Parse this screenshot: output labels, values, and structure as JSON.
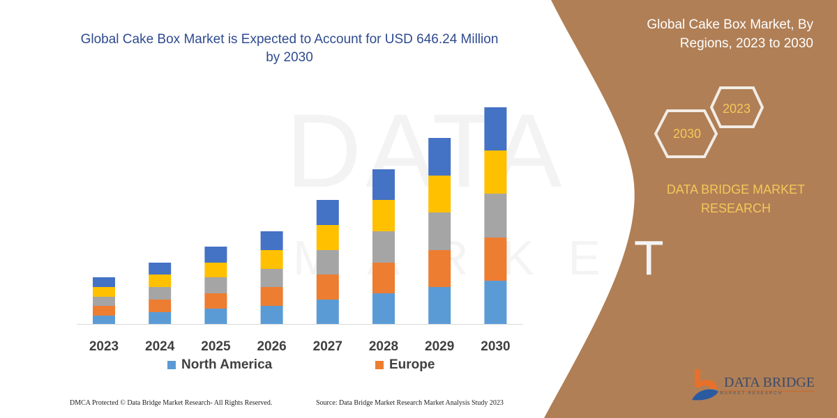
{
  "colors": {
    "panel": "#B07F56",
    "title": "#2E4B8F",
    "accent": "#F3C85A"
  },
  "footer": {
    "rights": "DMCA Protected © Data Bridge Market Research-  All Rights Reserved.",
    "source": "Source: Data Bridge Market Research  Market Analysis Study 2023"
  },
  "side_panel": {
    "title": "Global Cake Box Market, By Regions, 2023 to 2030",
    "hex_front": "2030",
    "hex_back": "2023",
    "brand": "DATA BRIDGE MARKET RESEARCH",
    "logo_text": "DATA BRIDGE",
    "logo_sub": "MARKET RESEARCH"
  },
  "chart_data": {
    "type": "bar",
    "stacked": true,
    "title": "Global Cake Box Market is Expected to Account for USD 646.24 Million by 2030",
    "xlabel": "",
    "ylabel": "",
    "y_axis_shown": false,
    "grid": false,
    "legend_position": "bottom",
    "categories": [
      "2023",
      "2024",
      "2025",
      "2026",
      "2027",
      "2028",
      "2029",
      "2030"
    ],
    "series": [
      {
        "name": "North America",
        "color": "#5B9BD5",
        "values": [
          12,
          17,
          22,
          26,
          35,
          44,
          53,
          62
        ]
      },
      {
        "name": "Europe",
        "color": "#ED7D31",
        "values": [
          14,
          18,
          22,
          27,
          36,
          44,
          53,
          62
        ]
      },
      {
        "color": "#A5A5A5",
        "values": [
          13,
          18,
          23,
          26,
          35,
          45,
          54,
          63
        ]
      },
      {
        "color": "#FFC000",
        "values": [
          14,
          18,
          21,
          27,
          36,
          45,
          53,
          62
        ]
      },
      {
        "color": "#4472C4",
        "values": [
          14,
          17,
          23,
          27,
          36,
          44,
          54,
          62
        ]
      }
    ]
  }
}
